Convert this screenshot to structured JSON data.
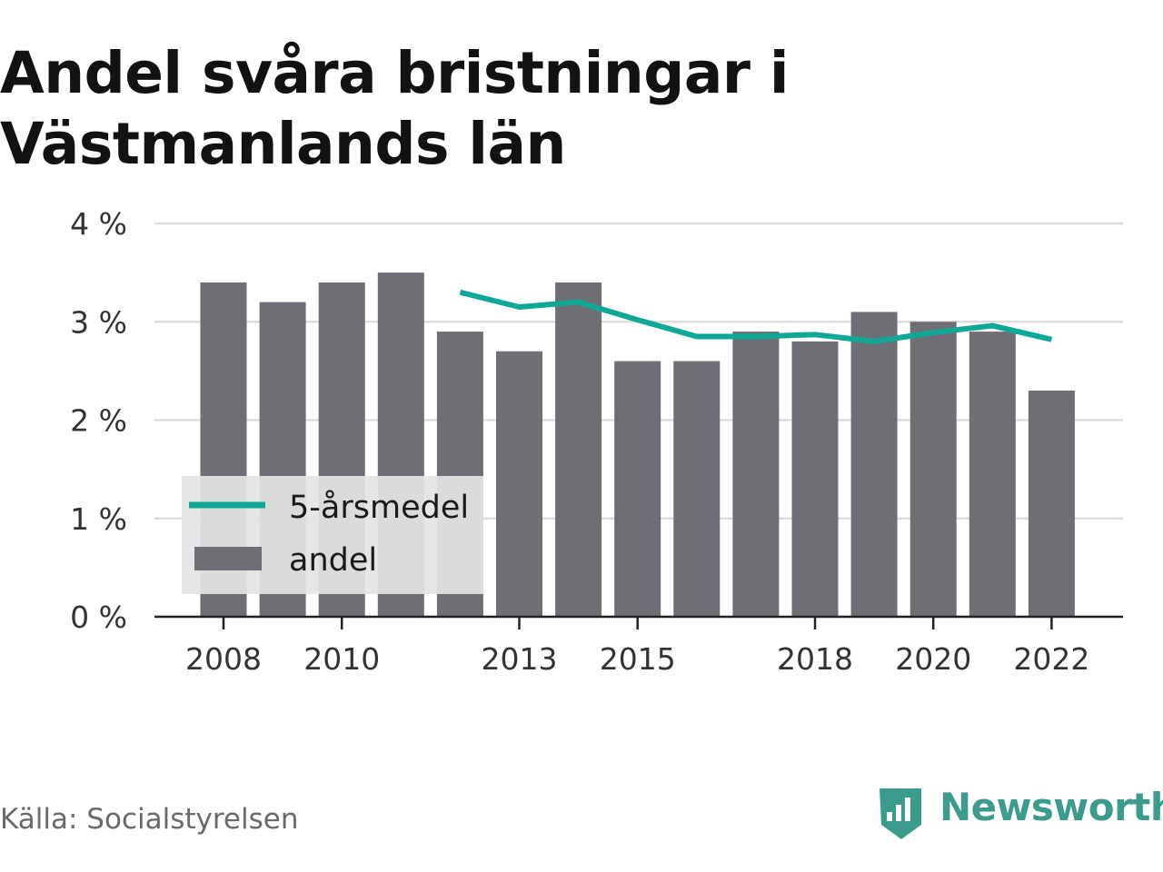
{
  "title": "Andel svåra bristningar i Västmanlands län",
  "source": "Källa: Socialstyrelsen",
  "brand": "Newsworthy",
  "colors": {
    "bar": "#6f6e75",
    "line": "#0fa896",
    "grid": "#dddddd",
    "axis": "#222222",
    "legend_bg": "#e4e4e4"
  },
  "chart_data": {
    "type": "bar",
    "x": [
      2008,
      2009,
      2010,
      2011,
      2012,
      2013,
      2014,
      2015,
      2016,
      2017,
      2018,
      2019,
      2020,
      2021,
      2022
    ],
    "x_tick_labels": [
      "2008",
      "2010",
      "2013",
      "2015",
      "2018",
      "2020",
      "2022"
    ],
    "y_tick_labels": [
      "0 %",
      "1 %",
      "2 %",
      "3 %",
      "4 %"
    ],
    "ylim": [
      0,
      4
    ],
    "grid": true,
    "legend_position": "bottom-left",
    "series": [
      {
        "name": "andel",
        "type": "bar",
        "values": [
          3.4,
          3.2,
          3.4,
          3.5,
          2.9,
          2.7,
          3.4,
          2.6,
          2.6,
          2.9,
          2.8,
          3.1,
          3.0,
          2.9,
          2.3
        ]
      },
      {
        "name": "5-årsmedel",
        "type": "line",
        "values": [
          null,
          null,
          null,
          null,
          3.3,
          3.15,
          3.2,
          3.02,
          2.85,
          2.85,
          2.87,
          2.8,
          2.89,
          2.96,
          2.82
        ]
      }
    ],
    "legend": [
      "5-årsmedel",
      "andel"
    ]
  }
}
